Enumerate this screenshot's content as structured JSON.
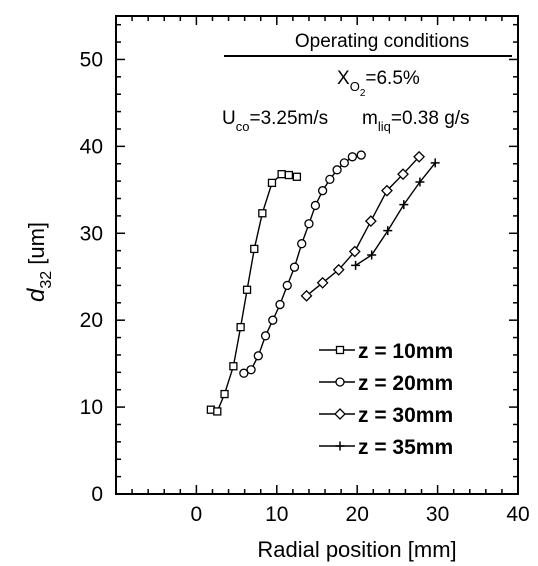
{
  "chart_data": {
    "type": "line",
    "xlabel": "Radial position [mm]",
    "ylabel": {
      "main": "d",
      "sub": "32",
      "unit": " [um]"
    },
    "x_ticks": [
      "0",
      "10",
      "20",
      "30",
      "40"
    ],
    "y_ticks": [
      "0",
      "10",
      "20",
      "30",
      "40",
      "50"
    ],
    "xlim": [
      -10,
      40
    ],
    "ylim": [
      0,
      55
    ],
    "grid": false,
    "legend_position": "bottom-right",
    "annotation": {
      "heading": "Operating conditions",
      "xo2": {
        "prefix": "X",
        "sub": "O",
        "subsub": "2",
        "value": "=6.5%"
      },
      "uco": {
        "prefix": "U",
        "sub": "co",
        "value": "=3.25m/s"
      },
      "mliq": {
        "prefix": "m",
        "sub": "liq",
        "value": "=0.38 g/s"
      }
    },
    "series": [
      {
        "name": "z = 10mm",
        "marker": "square",
        "points": [
          [
            1.8,
            9.7
          ],
          [
            2.6,
            9.5
          ],
          [
            3.5,
            11.5
          ],
          [
            4.6,
            14.7
          ],
          [
            5.5,
            19.2
          ],
          [
            6.3,
            23.5
          ],
          [
            7.2,
            28.2
          ],
          [
            8.2,
            32.3
          ],
          [
            9.4,
            35.8
          ],
          [
            10.6,
            36.8
          ],
          [
            11.5,
            36.7
          ],
          [
            12.5,
            36.5
          ]
        ]
      },
      {
        "name": "z = 20mm",
        "marker": "circle",
        "points": [
          [
            5.9,
            13.9
          ],
          [
            6.8,
            14.3
          ],
          [
            7.7,
            15.9
          ],
          [
            8.6,
            18.2
          ],
          [
            9.5,
            20.0
          ],
          [
            10.4,
            21.8
          ],
          [
            11.3,
            24.0
          ],
          [
            12.2,
            26.1
          ],
          [
            13.1,
            28.8
          ],
          [
            14.0,
            31.1
          ],
          [
            14.8,
            33.2
          ],
          [
            15.7,
            34.9
          ],
          [
            16.6,
            36.2
          ],
          [
            17.5,
            37.3
          ],
          [
            18.4,
            38.1
          ],
          [
            19.4,
            38.8
          ],
          [
            20.5,
            39.0
          ]
        ]
      },
      {
        "name": "z = 30mm",
        "marker": "diamond",
        "points": [
          [
            13.7,
            22.8
          ],
          [
            15.7,
            24.3
          ],
          [
            17.7,
            25.8
          ],
          [
            19.7,
            27.9
          ],
          [
            21.7,
            31.4
          ],
          [
            23.7,
            34.9
          ],
          [
            25.7,
            36.8
          ],
          [
            27.7,
            38.8
          ]
        ]
      },
      {
        "name": "z = 35mm",
        "marker": "plus",
        "points": [
          [
            19.8,
            26.3
          ],
          [
            21.8,
            27.5
          ],
          [
            23.8,
            30.3
          ],
          [
            25.8,
            33.3
          ],
          [
            27.8,
            35.9
          ],
          [
            29.7,
            38.1
          ]
        ]
      }
    ]
  }
}
